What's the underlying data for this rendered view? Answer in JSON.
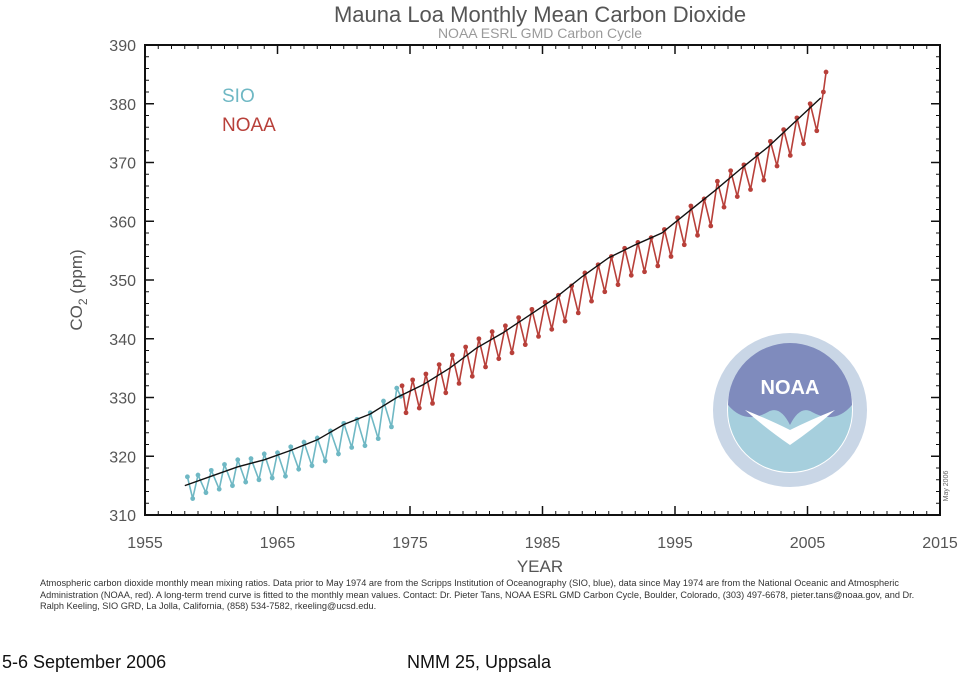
{
  "chart_data": {
    "type": "line",
    "title": "Mauna Loa Monthly Mean Carbon Dioxide",
    "subtitle": "NOAA ESRL GMD Carbon Cycle",
    "xlabel": "YEAR",
    "ylabel_main": "CO",
    "ylabel_sub": "2",
    "ylabel_unit": " (ppm)",
    "xlim": [
      1955,
      2015
    ],
    "ylim": [
      310,
      390
    ],
    "xticks": [
      1955,
      1965,
      1975,
      1985,
      1995,
      2005,
      2015
    ],
    "yticks": [
      310,
      320,
      330,
      340,
      350,
      360,
      370,
      380,
      390
    ],
    "legend": [
      {
        "name": "SIO",
        "color": "#6fb8c4"
      },
      {
        "name": "NOAA",
        "color": "#b8403a"
      }
    ],
    "legend_position": "top-left",
    "grid": false,
    "trend_color": "#111111",
    "series": [
      {
        "name": "SIO",
        "color": "#6fb8c4",
        "x": [
          1958.2,
          1958.6,
          1959.0,
          1959.6,
          1960.0,
          1960.6,
          1961.0,
          1961.6,
          1962.0,
          1962.6,
          1963.0,
          1963.6,
          1964.0,
          1964.6,
          1965.0,
          1965.6,
          1966.0,
          1966.6,
          1967.0,
          1967.6,
          1968.0,
          1968.6,
          1969.0,
          1969.6,
          1970.0,
          1970.6,
          1971.0,
          1971.6,
          1972.0,
          1972.6,
          1973.0,
          1973.6,
          1974.0,
          1974.3
        ],
        "y": [
          316.5,
          312.8,
          316.8,
          313.8,
          317.6,
          314.4,
          318.6,
          315.0,
          319.4,
          315.6,
          319.6,
          316.0,
          320.4,
          316.3,
          320.6,
          316.6,
          321.6,
          317.8,
          322.4,
          318.4,
          323.1,
          319.2,
          324.3,
          320.4,
          325.6,
          321.5,
          326.3,
          321.8,
          327.4,
          323.0,
          329.4,
          325.0,
          331.6,
          330.2
        ]
      },
      {
        "name": "NOAA",
        "color": "#b8403a",
        "x": [
          1974.4,
          1974.7,
          1975.2,
          1975.7,
          1976.2,
          1976.7,
          1977.2,
          1977.7,
          1978.2,
          1978.7,
          1979.2,
          1979.7,
          1980.2,
          1980.7,
          1981.2,
          1981.7,
          1982.2,
          1982.7,
          1983.2,
          1983.7,
          1984.2,
          1984.7,
          1985.2,
          1985.7,
          1986.2,
          1986.7,
          1987.2,
          1987.7,
          1988.2,
          1988.7,
          1989.2,
          1989.7,
          1990.2,
          1990.7,
          1991.2,
          1991.7,
          1992.2,
          1992.7,
          1993.2,
          1993.7,
          1994.2,
          1994.7,
          1995.2,
          1995.7,
          1996.2,
          1996.7,
          1997.2,
          1997.7,
          1998.2,
          1998.7,
          1999.2,
          1999.7,
          2000.2,
          2000.7,
          2001.2,
          2001.7,
          2002.2,
          2002.7,
          2003.2,
          2003.7,
          2004.2,
          2004.7,
          2005.2,
          2005.7,
          2006.2,
          2006.4
        ],
        "y": [
          332.0,
          327.4,
          333.0,
          328.2,
          334.0,
          329.0,
          335.6,
          330.8,
          337.2,
          332.4,
          338.6,
          333.6,
          340.0,
          335.2,
          341.2,
          336.6,
          342.2,
          337.6,
          343.6,
          339.0,
          345.0,
          340.4,
          346.2,
          341.6,
          347.4,
          343.0,
          349.0,
          344.4,
          351.2,
          346.4,
          352.6,
          348.0,
          354.0,
          349.2,
          355.4,
          350.8,
          356.4,
          351.4,
          357.2,
          352.4,
          358.6,
          354.0,
          360.6,
          356.0,
          362.6,
          357.6,
          363.8,
          359.2,
          366.8,
          362.4,
          368.6,
          364.2,
          369.6,
          365.4,
          371.4,
          367.0,
          373.6,
          369.4,
          375.6,
          371.2,
          377.6,
          373.2,
          380.0,
          375.4,
          382.0,
          385.4
        ]
      }
    ],
    "trend": {
      "name": "trend",
      "x": [
        1958,
        1960,
        1962,
        1964,
        1966,
        1968,
        1970,
        1972,
        1974,
        1976,
        1978,
        1980,
        1982,
        1984,
        1986,
        1988,
        1990,
        1992,
        1994,
        1996,
        1998,
        2000,
        2002,
        2004,
        2006
      ],
      "y": [
        315.0,
        316.6,
        318.2,
        319.4,
        321.0,
        322.8,
        325.4,
        327.2,
        330.0,
        332.2,
        335.0,
        338.4,
        341.0,
        344.0,
        347.0,
        350.6,
        353.8,
        356.0,
        358.0,
        361.6,
        365.2,
        369.0,
        372.6,
        376.8,
        381.0
      ]
    },
    "side_note": "May 2006"
  },
  "logo": {
    "text": "NOAA"
  },
  "caption": "Atmospheric carbon dioxide monthly mean mixing ratios.  Data prior to May 1974 are from the Scripps Institution of Oceanography (SIO, blue), data since May 1974 are from the National Oceanic and Atmospheric Administration (NOAA, red).  A long-term trend curve is fitted to the monthly mean values.  Contact: Dr. Pieter Tans, NOAA ESRL GMD Carbon Cycle, Boulder, Colorado, (303) 497-6678, pieter.tans@noaa.gov, and Dr. Ralph Keeling, SIO GRD, La Jolla, California, (858) 534-7582, rkeeling@ucsd.edu.",
  "footer": {
    "date": "5-6 September 2006",
    "event": "NMM 25, Uppsala"
  }
}
